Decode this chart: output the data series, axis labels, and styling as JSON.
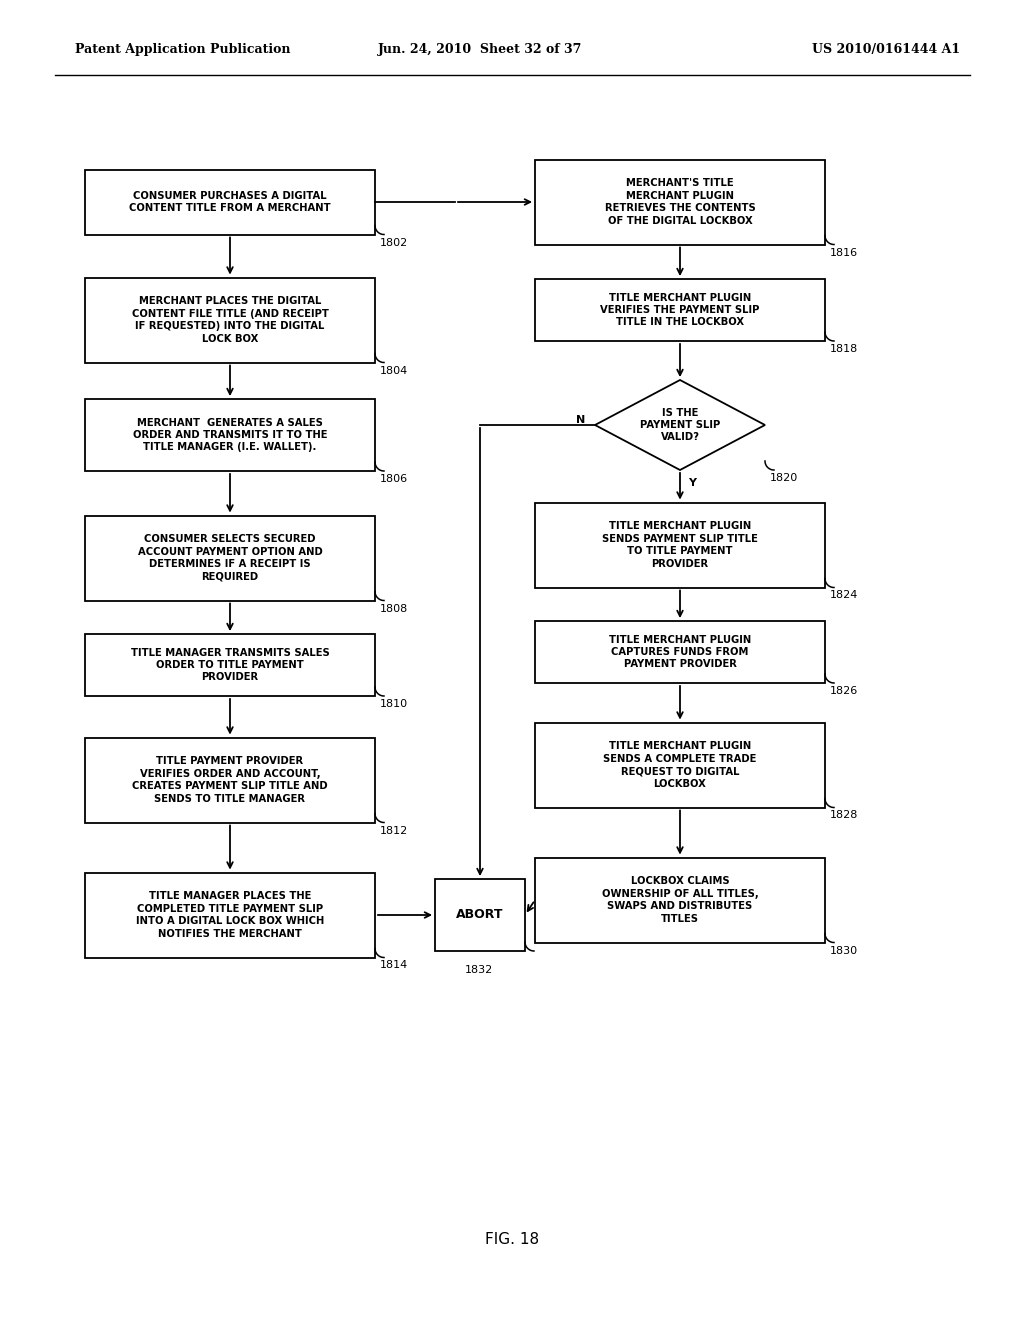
{
  "header_left": "Patent Application Publication",
  "header_mid": "Jun. 24, 2010  Sheet 32 of 37",
  "header_right": "US 2010/0161444 A1",
  "figure_label": "FIG. 18",
  "bg_color": "#ffffff",
  "left_boxes": [
    {
      "id": "1802",
      "label": "CONSUMER PURCHASES A DIGITAL\nCONTENT TITLE FROM A MERCHANT",
      "ref": "1802"
    },
    {
      "id": "1804",
      "label": "MERCHANT PLACES THE DIGITAL\nCONTENT FILE TITLE (AND RECEIPT\nIF REQUESTED) INTO THE DIGITAL\nLOCK BOX",
      "ref": "1804"
    },
    {
      "id": "1806",
      "label": "MERCHANT  GENERATES A SALES\nORDER AND TRANSMITS IT TO THE\nTITLE MANAGER (I.E. WALLET).",
      "ref": "1806"
    },
    {
      "id": "1808",
      "label": "CONSUMER SELECTS SECURED\nACCOUNT PAYMENT OPTION AND\nDETERMINES IF A RECEIPT IS\nREQUIRED",
      "ref": "1808"
    },
    {
      "id": "1810",
      "label": "TITLE MANAGER TRANSMITS SALES\nORDER TO TITLE PAYMENT\nPROVIDER",
      "ref": "1810"
    },
    {
      "id": "1812",
      "label": "TITLE PAYMENT PROVIDER\nVERIFIES ORDER AND ACCOUNT,\nCREATES PAYMENT SLIP TITLE AND\nSENDS TO TITLE MANAGER",
      "ref": "1812"
    },
    {
      "id": "1814",
      "label": "TITLE MANAGER PLACES THE\nCOMPLETED TITLE PAYMENT SLIP\nINTO A DIGITAL LOCK BOX WHICH\nNOTIFIES THE MERCHANT",
      "ref": "1814"
    }
  ],
  "right_boxes": [
    {
      "id": "1816",
      "label": "MERCHANT'S TITLE\nMERCHANT PLUGIN\nRETRIEVES THE CONTENTS\nOF THE DIGITAL LOCKBOX",
      "ref": "1816",
      "shape": "rect"
    },
    {
      "id": "1818",
      "label": "TITLE MERCHANT PLUGIN\nVERIFIES THE PAYMENT SLIP\nTITLE IN THE LOCKBOX",
      "ref": "1818",
      "shape": "rect"
    },
    {
      "id": "1820",
      "label": "IS THE\nPAYMENT SLIP\nVALID?",
      "ref": "1820",
      "shape": "diamond"
    },
    {
      "id": "1824",
      "label": "TITLE MERCHANT PLUGIN\nSENDS PAYMENT SLIP TITLE\nTO TITLE PAYMENT\nPROVIDER",
      "ref": "1824",
      "shape": "rect"
    },
    {
      "id": "1826",
      "label": "TITLE MERCHANT PLUGIN\nCAPTURES FUNDS FROM\nPAYMENT PROVIDER",
      "ref": "1826",
      "shape": "rect"
    },
    {
      "id": "1828",
      "label": "TITLE MERCHANT PLUGIN\nSENDS A COMPLETE TRADE\nREQUEST TO DIGITAL\nLOCKBOX",
      "ref": "1828",
      "shape": "rect"
    },
    {
      "id": "1830",
      "label": "LOCKBOX CLAIMS\nOWNERSHIP OF ALL TITLES,\nSWAPS AND DISTRIBUTES\nTITLES",
      "ref": "1830",
      "shape": "rect"
    }
  ],
  "abort_label": "ABORT",
  "abort_ref": "1832"
}
